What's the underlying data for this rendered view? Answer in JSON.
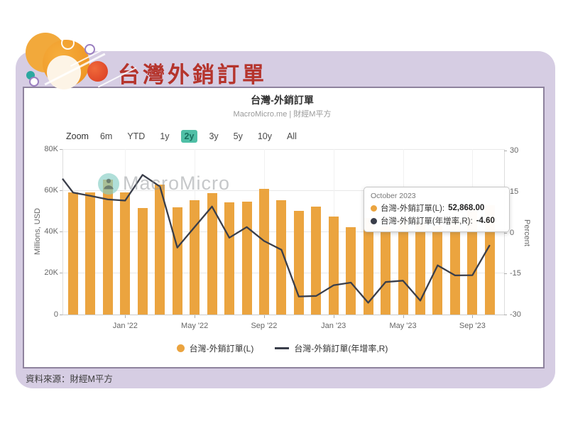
{
  "page": {
    "header_title": "台灣外銷訂單",
    "source_note": "資料來源：財經M平方"
  },
  "chart": {
    "title": "台灣-外銷訂單",
    "subtitle": "MacroMicro.me | 財經M平方",
    "watermark_text": "MacroMicro",
    "range_selector": {
      "zoom_label": "Zoom",
      "options": [
        "6m",
        "YTD",
        "1y",
        "2y",
        "3y",
        "5y",
        "10y",
        "All"
      ],
      "selected": "2y",
      "selected_bg_color": "#4FBFA6"
    },
    "y_axis_left": {
      "title": "Millions, USD",
      "tick_labels": [
        "80K",
        "60K",
        "40K",
        "20K",
        "0"
      ]
    },
    "y_axis_right": {
      "title": "Percent",
      "tick_labels": [
        "30",
        "15",
        "0",
        "-15",
        "-30"
      ]
    },
    "legend": [
      {
        "label": "台灣-外銷訂單(L)",
        "marker": "circle",
        "color": "#EBA43F"
      },
      {
        "label": "台灣-外銷訂單(年增率,R)",
        "marker": "line",
        "color": "#3A3E4A"
      }
    ],
    "tooltip": {
      "title": "October 2023",
      "rows": [
        {
          "label": "台灣-外銷訂單(L)",
          "value": "52,868.00",
          "color": "#EBA43F"
        },
        {
          "label": "台灣-外銷訂單(年增率,R)",
          "value": "-4.60",
          "color": "#3A3E4A"
        }
      ]
    }
  },
  "chart_data": {
    "type": "combo bar+line, dual axis",
    "x": [
      "Oct 2021",
      "Nov 2021",
      "Dec 2021",
      "Jan 2022",
      "Feb 2022",
      "Mar 2022",
      "Apr 2022",
      "May 2022",
      "Jun 2022",
      "Jul 2022",
      "Aug 2022",
      "Sep 2022",
      "Oct 2022",
      "Nov 2022",
      "Dec 2022",
      "Jan 2023",
      "Feb 2023",
      "Mar 2023",
      "Apr 2023",
      "May 2023",
      "Jun 2023",
      "Jul 2023",
      "Aug 2023",
      "Sep 2023",
      "Oct 2023"
    ],
    "x_tick_labels": [
      "Jan '22",
      "May '22",
      "Sep '22",
      "Jan '23",
      "May '23",
      "Sep '23"
    ],
    "x_tick_indices": [
      3,
      7,
      11,
      15,
      19,
      23
    ],
    "series": [
      {
        "name": "台灣-外銷訂單(L)",
        "type": "bar",
        "axis": "left",
        "unit": "Millions, USD",
        "color": "#EBA43F",
        "values": [
          59100,
          58990,
          65300,
          58890,
          51560,
          62690,
          51900,
          55430,
          58810,
          54260,
          54590,
          60900,
          55430,
          50140,
          52170,
          47450,
          42120,
          46580,
          42490,
          45700,
          44160,
          42940,
          46010,
          51580,
          52868
        ]
      },
      {
        "name": "台灣-外銷訂單(年增率,R)",
        "type": "line",
        "axis": "right",
        "unit": "Percent",
        "color": "#3A3E4A",
        "values": [
          14.6,
          13.4,
          12.1,
          11.7,
          21.1,
          16.8,
          -5.5,
          2.0,
          9.5,
          -1.9,
          2.0,
          -3.1,
          -6.3,
          -23.4,
          -23.2,
          -19.3,
          -18.3,
          -25.7,
          -18.1,
          -17.6,
          -24.9,
          -12.0,
          -15.7,
          -15.6,
          -4.6
        ]
      }
    ],
    "ylim_left": [
      0,
      80000
    ],
    "ylim_right": [
      -30,
      30
    ],
    "left_edge_partial_line_value": 19.7,
    "grid": "light horizontal gridlines at axis ticks, faint vertical gridlines at labeled x ticks",
    "legend_position": "bottom center"
  }
}
